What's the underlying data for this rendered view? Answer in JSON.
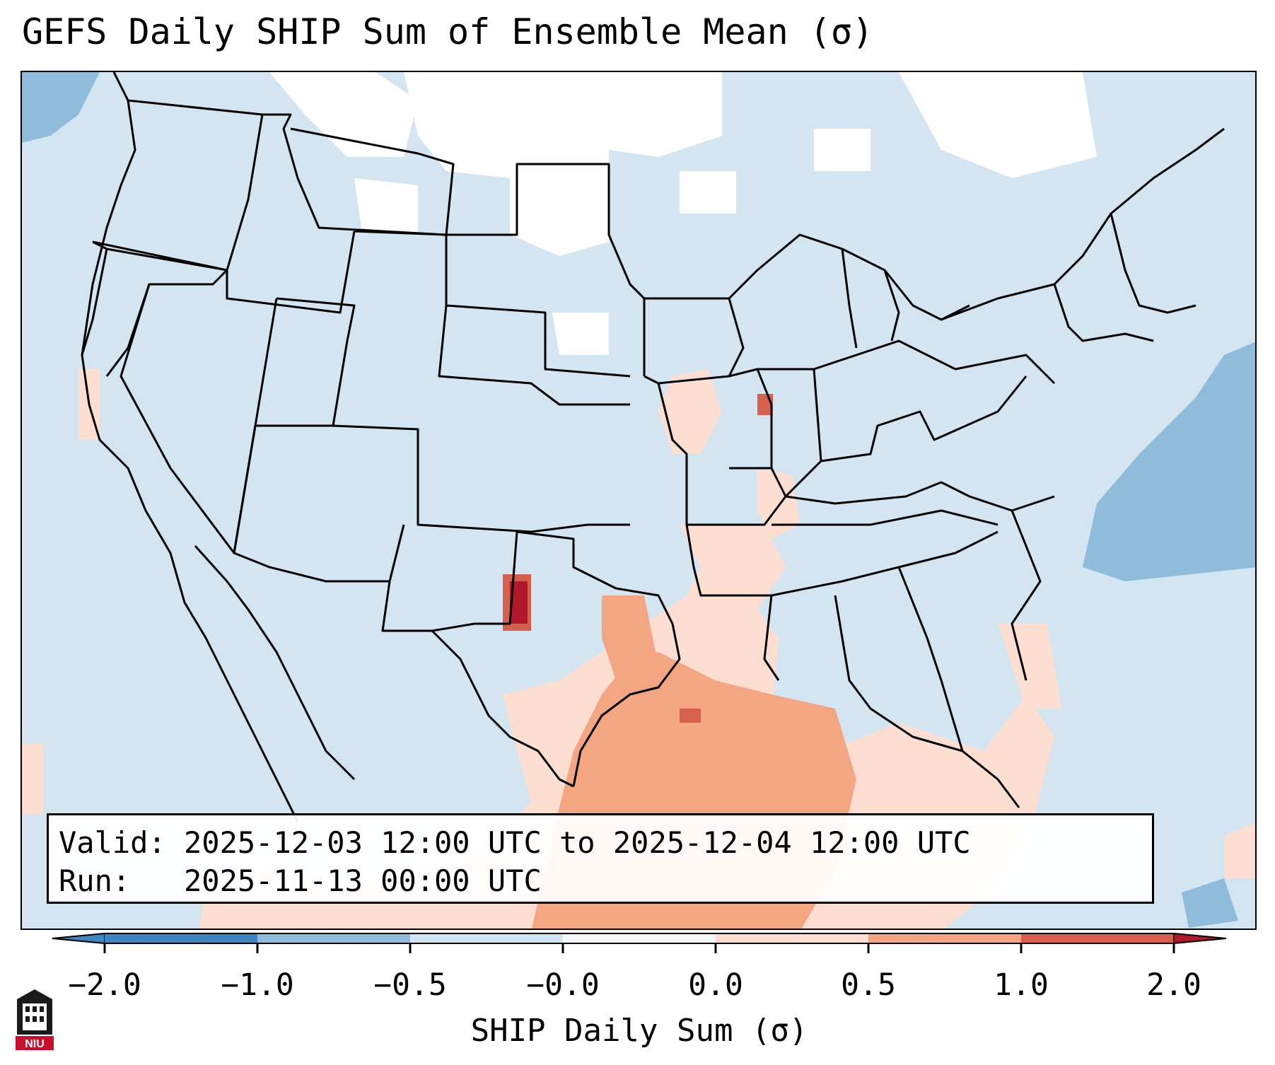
{
  "title": "GEFS Daily SHIP Sum of Ensemble Mean (σ)",
  "info": {
    "valid_label": "Valid:",
    "valid_value": "2025-12-03 12:00 UTC to 2025-12-04 12:00 UTC",
    "run_label": "Run:",
    "run_value": "2025-11-13 00:00 UTC"
  },
  "colorbar": {
    "label": "SHIP Daily Sum (σ)",
    "ticks": [
      "−2.0",
      "−1.0",
      "−0.5",
      "−0.0",
      "0.0",
      "0.5",
      "1.0",
      "2.0"
    ],
    "colors": [
      "#3f85c0",
      "#8fbcdb",
      "#d2e5f1",
      "#f7f7f7",
      "#fdded0",
      "#f4a582",
      "#d6604d",
      "#b2182b"
    ]
  },
  "map": {
    "region": "CONUS",
    "background_color": "#d2e5f1",
    "border_color": "#000000"
  },
  "logo": {
    "name": "niu-logo",
    "text": "NIU",
    "color": "#c8102e"
  }
}
